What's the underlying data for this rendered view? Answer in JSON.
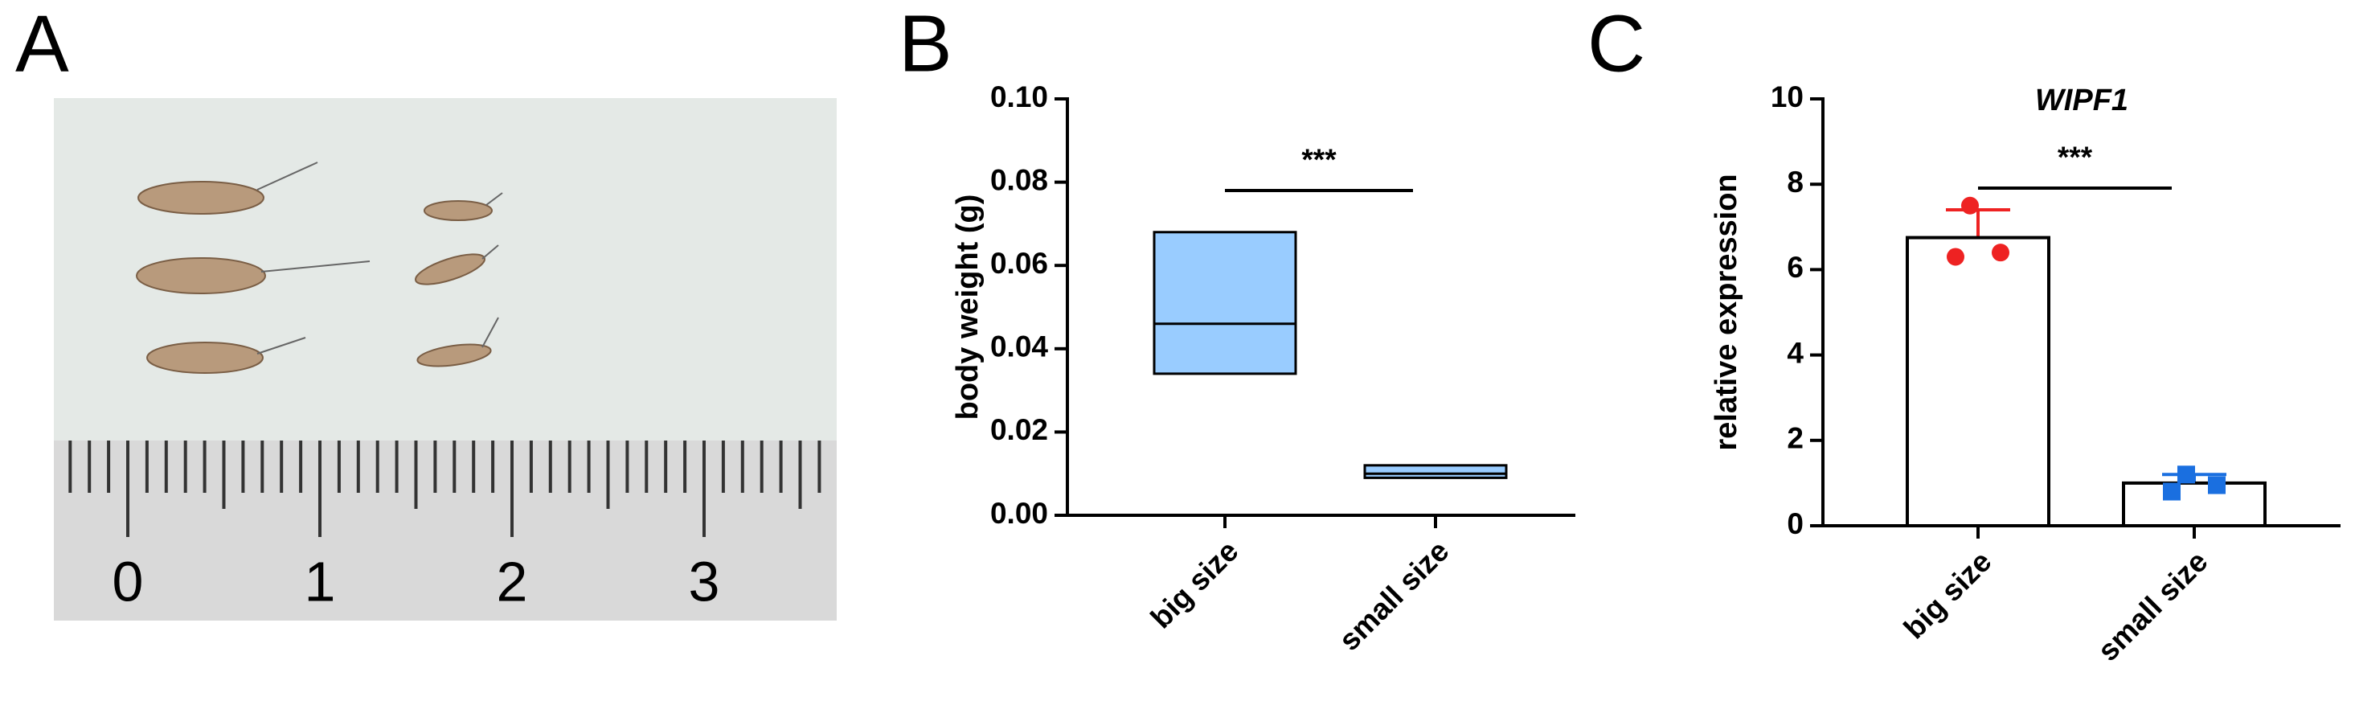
{
  "panel_labels": [
    "A",
    "B",
    "C"
  ],
  "photo": {
    "ruler_labels": [
      0,
      1,
      2,
      3
    ]
  },
  "chart_data": [
    {
      "type": "floating-bar",
      "ylabel": "body weight (g)",
      "categories": [
        "big size",
        "small size"
      ],
      "low": [
        0.034,
        0.009
      ],
      "mid": [
        0.046,
        0.01
      ],
      "high": [
        0.068,
        0.012
      ],
      "color": "#99ccff",
      "ylim": [
        0,
        0.1
      ],
      "yticks": [
        {
          "value": 0,
          "label": "0.00"
        },
        {
          "value": 0.02,
          "label": "0.02"
        },
        {
          "value": 0.04,
          "label": "0.04"
        },
        {
          "value": 0.06,
          "label": "0.06"
        },
        {
          "value": 0.08,
          "label": "0.08"
        },
        {
          "value": 0.1,
          "label": "0.10"
        }
      ],
      "significance": "***"
    },
    {
      "type": "bar",
      "title": "WIPF1",
      "ylabel": "relative expression",
      "categories": [
        "big size",
        "small size"
      ],
      "values": [
        6.75,
        1.0
      ],
      "errors": [
        0.65,
        0.2
      ],
      "points": [
        [
          7.5,
          6.3,
          6.4
        ],
        [
          1.2,
          0.8,
          0.95
        ]
      ],
      "point_colors": [
        "#ee2222",
        "#1a6fe0"
      ],
      "point_markers": [
        "circle",
        "square"
      ],
      "color": "#ffffff",
      "ylim": [
        0,
        10
      ],
      "yticks": [
        0,
        2,
        4,
        6,
        8,
        10
      ],
      "significance": "***"
    }
  ]
}
